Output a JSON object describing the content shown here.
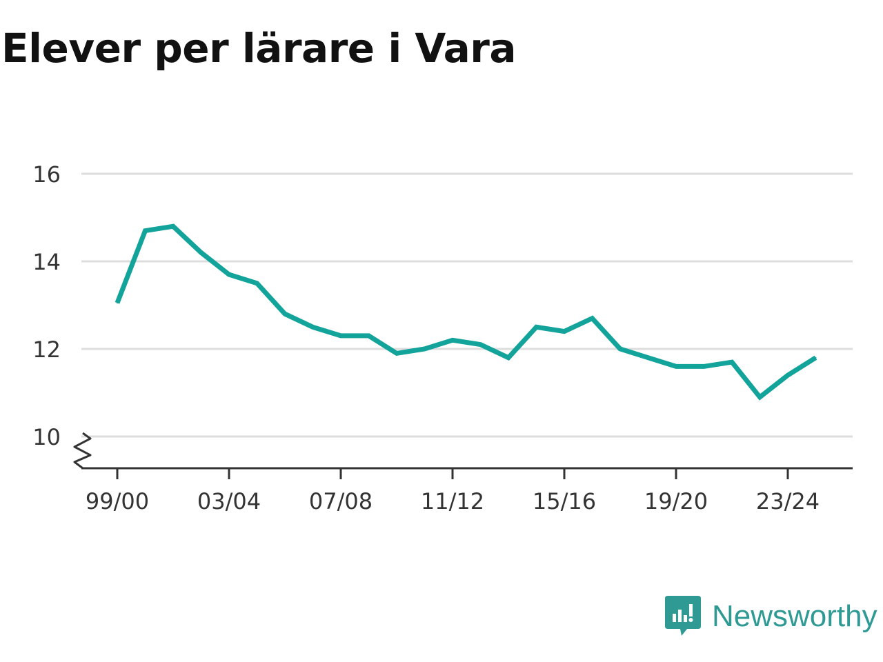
{
  "title": "Elever per lärare i Vara",
  "brand": {
    "name": "Newsworthy",
    "color": "#2f9a94",
    "icon": "newsworthy-logo-icon"
  },
  "chart_data": {
    "type": "line",
    "title": "Elever per lärare i Vara",
    "xlabel": "",
    "ylabel": "",
    "x": [
      "99/00",
      "00/01",
      "01/02",
      "02/03",
      "03/04",
      "04/05",
      "05/06",
      "06/07",
      "07/08",
      "08/09",
      "09/10",
      "10/11",
      "11/12",
      "12/13",
      "13/14",
      "14/15",
      "15/16",
      "16/17",
      "17/18",
      "18/19",
      "19/20",
      "20/21",
      "21/22",
      "22/23",
      "23/24",
      "24/25"
    ],
    "x_tick_labels": [
      "99/00",
      "03/04",
      "07/08",
      "11/12",
      "15/16",
      "19/20",
      "23/24"
    ],
    "y_ticks": [
      10,
      12,
      14,
      16
    ],
    "ylim": [
      9.25,
      16.2
    ],
    "y_axis_break": true,
    "grid": true,
    "series": [
      {
        "color": "#12a39a",
        "values": [
          13.05,
          14.7,
          14.8,
          14.2,
          13.7,
          13.5,
          12.8,
          12.5,
          12.3,
          12.3,
          11.9,
          12.0,
          12.2,
          12.1,
          11.8,
          12.5,
          12.4,
          12.7,
          12.0,
          11.8,
          11.6,
          11.6,
          11.7,
          10.9,
          11.4,
          11.8
        ]
      }
    ]
  }
}
